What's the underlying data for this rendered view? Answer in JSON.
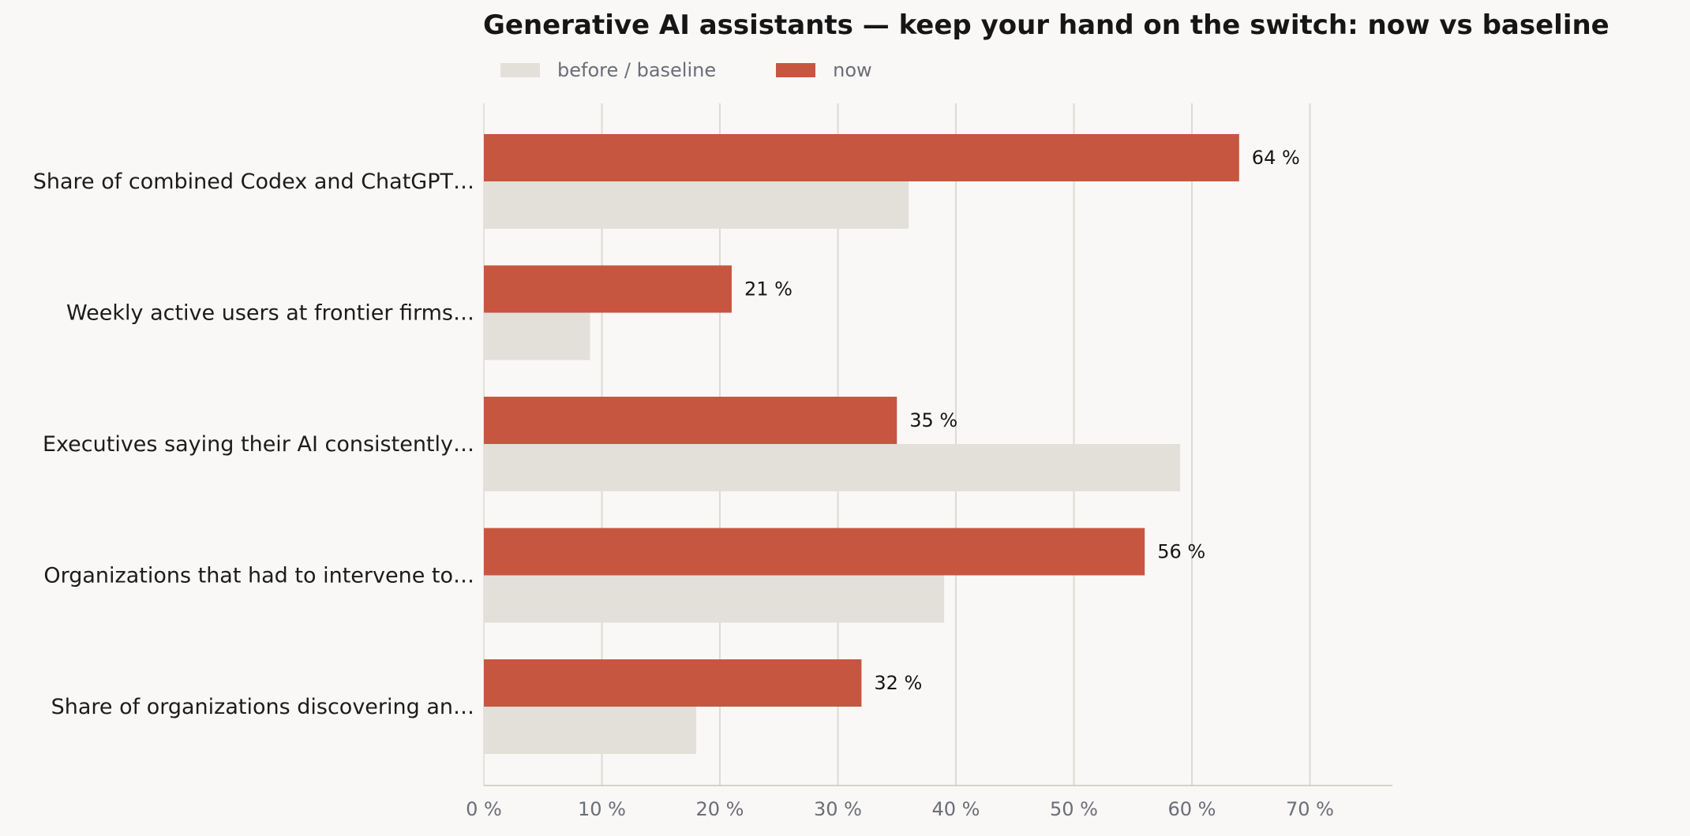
{
  "chart_data": {
    "type": "bar",
    "orientation": "horizontal",
    "title": "Generative AI assistants — keep your hand on the switch: now vs baseline",
    "xlabel": "",
    "ylabel": "",
    "xlim": [
      0,
      77
    ],
    "x_ticks": [
      0,
      10,
      20,
      30,
      40,
      50,
      60,
      70
    ],
    "x_tick_labels": [
      "0 %",
      "10 %",
      "20 %",
      "30 %",
      "40 %",
      "50 %",
      "60 %",
      "70 %"
    ],
    "grid": "vertical",
    "legend_position": "top-left",
    "categories": [
      "Share of combined Codex and ChatGPT…",
      "Weekly active users at frontier firms…",
      "Executives saying their AI consistently…",
      "Organizations that had to intervene to…",
      "Share of organizations discovering an…"
    ],
    "series": [
      {
        "name": "before / baseline",
        "color": "#e3e0da",
        "values": [
          36,
          9,
          59,
          39,
          18
        ]
      },
      {
        "name": "now",
        "color": "#c75640",
        "values": [
          64,
          21,
          35,
          56,
          32
        ],
        "value_labels": [
          "64 %",
          "21 %",
          "35 %",
          "56 %",
          "32 %"
        ]
      }
    ]
  }
}
